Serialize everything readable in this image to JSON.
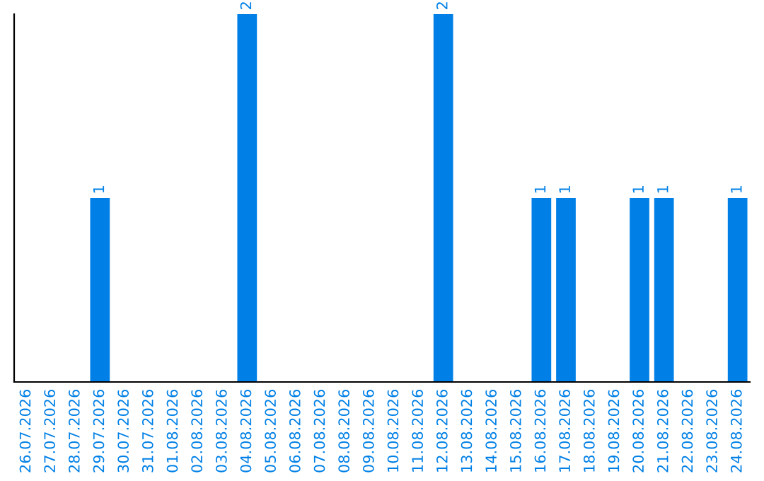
{
  "chart_data": {
    "type": "bar",
    "categories": [
      "26.07.2026",
      "27.07.2026",
      "28.07.2026",
      "29.07.2026",
      "30.07.2026",
      "31.07.2026",
      "01.08.2026",
      "02.08.2026",
      "03.08.2026",
      "04.08.2026",
      "05.08.2026",
      "06.08.2026",
      "07.08.2026",
      "08.08.2026",
      "09.08.2026",
      "10.08.2026",
      "11.08.2026",
      "12.08.2026",
      "13.08.2026",
      "14.08.2026",
      "15.08.2026",
      "16.08.2026",
      "17.08.2026",
      "18.08.2026",
      "19.08.2026",
      "20.08.2026",
      "21.08.2026",
      "22.08.2026",
      "23.08.2026",
      "24.08.2026"
    ],
    "values": [
      0,
      0,
      0,
      1,
      0,
      0,
      0,
      0,
      0,
      2,
      0,
      0,
      0,
      0,
      0,
      0,
      0,
      2,
      0,
      0,
      0,
      1,
      1,
      0,
      0,
      1,
      1,
      0,
      0,
      1
    ],
    "value_labels": [
      null,
      null,
      null,
      "1",
      null,
      null,
      null,
      null,
      null,
      "2",
      null,
      null,
      null,
      null,
      null,
      null,
      null,
      "2",
      null,
      null,
      null,
      "1",
      "1",
      null,
      null,
      "1",
      "1",
      null,
      null,
      "1"
    ],
    "color": "#0080e6",
    "ylim": [
      0,
      2
    ],
    "tick_labels": "x",
    "grid": false
  }
}
